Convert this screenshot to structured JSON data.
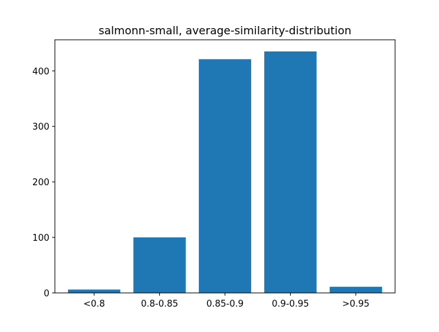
{
  "chart_data": {
    "type": "bar",
    "title": "salmonn-small, average-similarity-distribution",
    "xlabel": "",
    "ylabel": "",
    "categories": [
      "<0.8",
      "0.8-0.85",
      "0.85-0.9",
      "0.9-0.95",
      ">0.95"
    ],
    "values": [
      6,
      100,
      421,
      435,
      11
    ],
    "ylim": [
      0,
      456
    ],
    "yticks": [
      0,
      100,
      200,
      300,
      400
    ],
    "grid": false,
    "bar_color": "#1f77b4"
  }
}
